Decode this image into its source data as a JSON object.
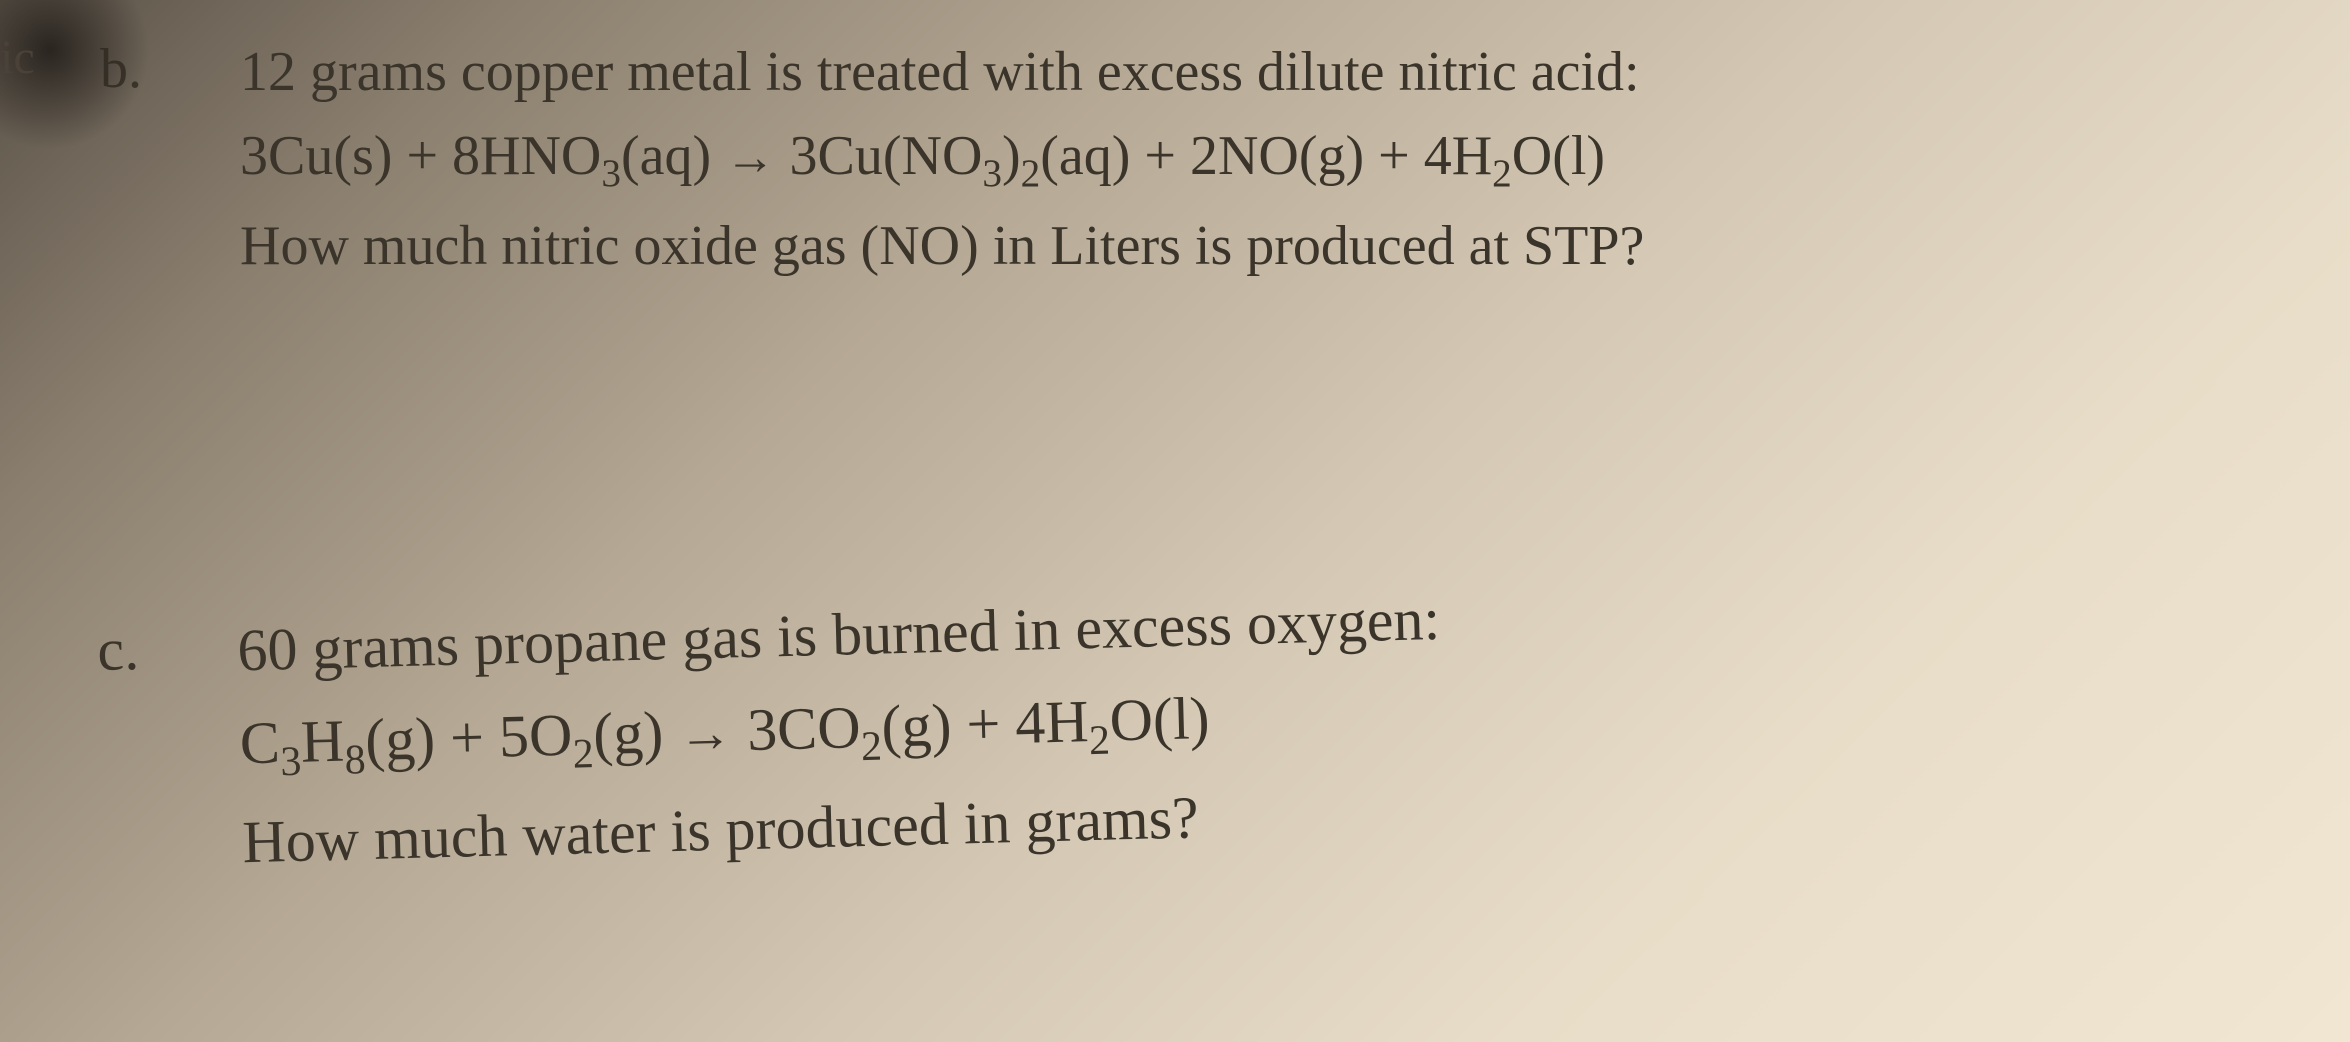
{
  "partial_edge_text": "ic",
  "question_b": {
    "label": "b.",
    "line1_prefix": "12 grams copper metal is treated with excess dilute nitric acid:",
    "eq_part1": "3Cu(s)  +  8HNO",
    "eq_sub1": "3",
    "eq_part2": "(aq)  ",
    "arrow": "→",
    "eq_part3": "  3Cu(NO",
    "eq_sub2": "3",
    "eq_part4": ")",
    "eq_sub3": "2",
    "eq_part5": "(aq)  +  2NO(g)  +  4H",
    "eq_sub4": "2",
    "eq_part6": "O(l)",
    "line3": "How much nitric oxide gas (NO) in Liters is produced at STP?"
  },
  "question_c": {
    "label": "c.",
    "line1": "60 grams propane gas is burned in excess oxygen:",
    "eq_part1": "C",
    "eq_sub1": "3",
    "eq_part2": "H",
    "eq_sub2": "8",
    "eq_part3": "(g)  +  5O",
    "eq_sub3": "2",
    "eq_part4": "(g)   ",
    "arrow": "→",
    "eq_part5": "  3CO",
    "eq_sub4": "2",
    "eq_part6": "(g)  +  4H",
    "eq_sub5": "2",
    "eq_part7": "O(l)",
    "line3": "How much water is produced in grams?"
  },
  "colors": {
    "text": "#3a342a",
    "bg_dark": "#5a5248",
    "bg_light": "#f0e6d2"
  }
}
